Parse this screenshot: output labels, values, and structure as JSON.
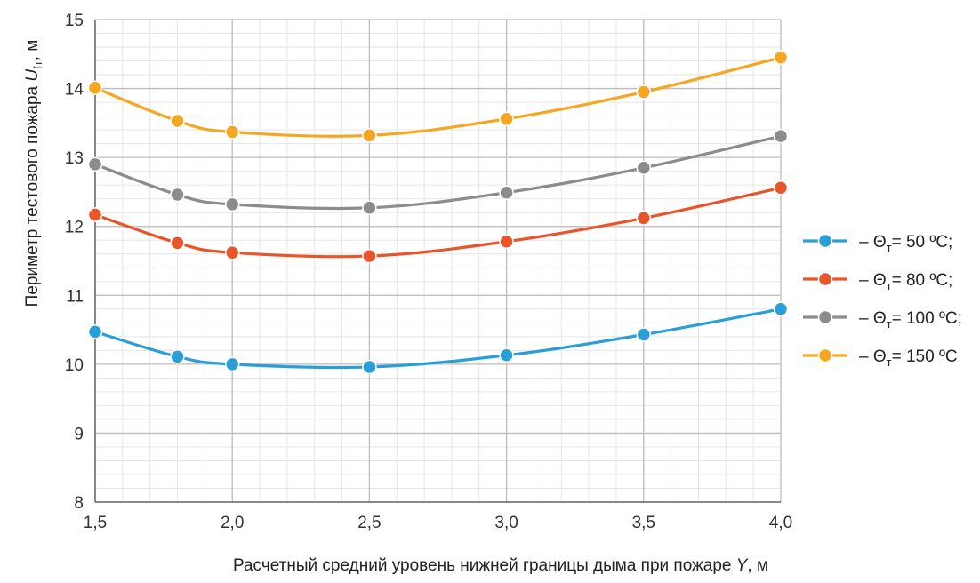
{
  "chart_data": {
    "type": "line",
    "xlabel": "Расчетный средний уровень нижней границы дыма при пожаре",
    "xlabel_var": "Y",
    "xlabel_unit": ", м",
    "ylabel": "Периметр тестового пожара",
    "ylabel_var": "U",
    "ylabel_sub": "fт",
    "ylabel_unit": ", м",
    "x": [
      1.5,
      1.8,
      2.0,
      2.5,
      3.0,
      3.5,
      4.0
    ],
    "x_ticks": [
      "1,5",
      "2,0",
      "2,5",
      "3,0",
      "3,5",
      "4,0"
    ],
    "x_tick_values": [
      1.5,
      2.0,
      2.5,
      3.0,
      3.5,
      4.0
    ],
    "y_ticks": [
      "8",
      "9",
      "10",
      "11",
      "12",
      "13",
      "14",
      "15"
    ],
    "y_tick_values": [
      8,
      9,
      10,
      11,
      12,
      13,
      14,
      15
    ],
    "xlim": [
      1.5,
      4.0
    ],
    "ylim": [
      8,
      15
    ],
    "grid": true,
    "minor_grid": true,
    "legend_position": "right",
    "series": [
      {
        "name": "– Θт = 50 ºС;",
        "legend_pre": "– Θ",
        "legend_sub": "т",
        "legend_post": "= 50 ºС;",
        "color": "#2a9ed6",
        "values": [
          10.47,
          10.11,
          10.0,
          9.96,
          10.13,
          10.43,
          10.8
        ]
      },
      {
        "name": "– Θт = 80 ºС;",
        "legend_pre": "– Θ",
        "legend_sub": "т",
        "legend_post": "= 80 ºС;",
        "color": "#e8552a",
        "values": [
          12.17,
          11.76,
          11.62,
          11.57,
          11.78,
          12.12,
          12.56
        ]
      },
      {
        "name": "– Θт = 100 ºС;",
        "legend_pre": "– Θ",
        "legend_sub": "т",
        "legend_post": "= 100 ºС;",
        "color": "#8c8c8c",
        "values": [
          12.9,
          12.46,
          12.32,
          12.27,
          12.49,
          12.85,
          13.31
        ]
      },
      {
        "name": "– Θт = 150 ºС",
        "legend_pre": "– Θ",
        "legend_sub": "т",
        "legend_post": "= 150 ºС",
        "color": "#f5a623",
        "values": [
          14.01,
          13.53,
          13.37,
          13.32,
          13.56,
          13.95,
          14.45
        ]
      }
    ]
  }
}
